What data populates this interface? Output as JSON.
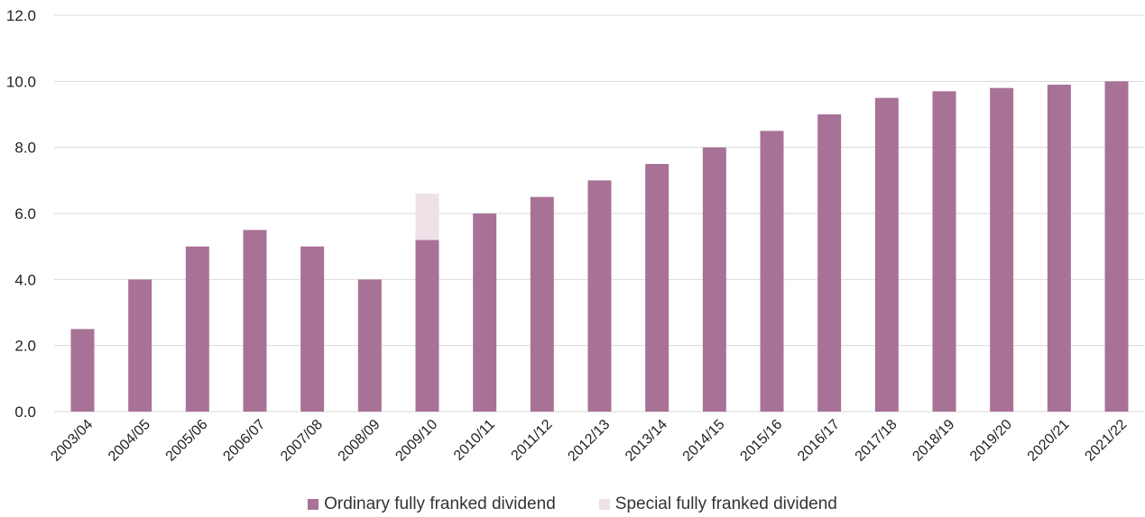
{
  "chart_data": {
    "type": "bar",
    "stacked": true,
    "title": "",
    "xlabel": "",
    "ylabel": "",
    "ylim": [
      0,
      12
    ],
    "yticks": [
      "0.0",
      "2.0",
      "4.0",
      "6.0",
      "8.0",
      "10.0",
      "12.0"
    ],
    "grid": true,
    "legend_position": "bottom-center",
    "categories": [
      "2003/04",
      "2004/05",
      "2005/06",
      "2006/07",
      "2007/08",
      "2008/09",
      "2009/10",
      "2010/11",
      "2011/12",
      "2012/13",
      "2013/14",
      "2014/15",
      "2015/16",
      "2016/17",
      "2017/18",
      "2018/19",
      "2019/20",
      "2020/21",
      "2021/22"
    ],
    "series": [
      {
        "name": "Ordinary fully franked dividend",
        "color": "#a87296",
        "values": [
          2.5,
          4.0,
          5.0,
          5.5,
          5.0,
          4.0,
          5.2,
          6.0,
          6.5,
          7.0,
          7.5,
          8.0,
          8.5,
          9.0,
          9.5,
          9.7,
          9.8,
          9.9,
          10.0
        ]
      },
      {
        "name": "Special fully franked dividend",
        "color": "#efe1e8",
        "values": [
          0,
          0,
          0,
          0,
          0,
          0,
          1.4,
          0,
          0,
          0,
          0,
          0,
          0,
          0,
          0,
          0,
          0,
          0,
          0
        ]
      }
    ]
  }
}
